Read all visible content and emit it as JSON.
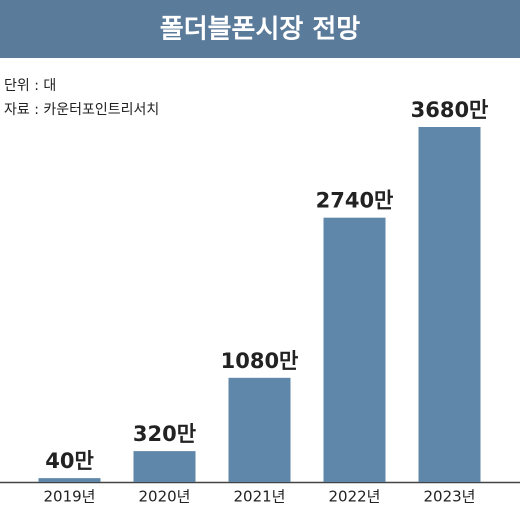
{
  "chart_data": {
    "type": "bar",
    "title": "폴더블폰시장 전망",
    "unit_note": "단위 : 대",
    "source": "자료 : 카운터포인트리서치",
    "categories": [
      "2019년",
      "2020년",
      "2021년",
      "2022년",
      "2023년"
    ],
    "values": [
      40,
      320,
      1080,
      2740,
      3680
    ],
    "value_labels": [
      "40만",
      "320만",
      "1080만",
      "2740만",
      "3680만"
    ],
    "color": "#5f87aa"
  }
}
